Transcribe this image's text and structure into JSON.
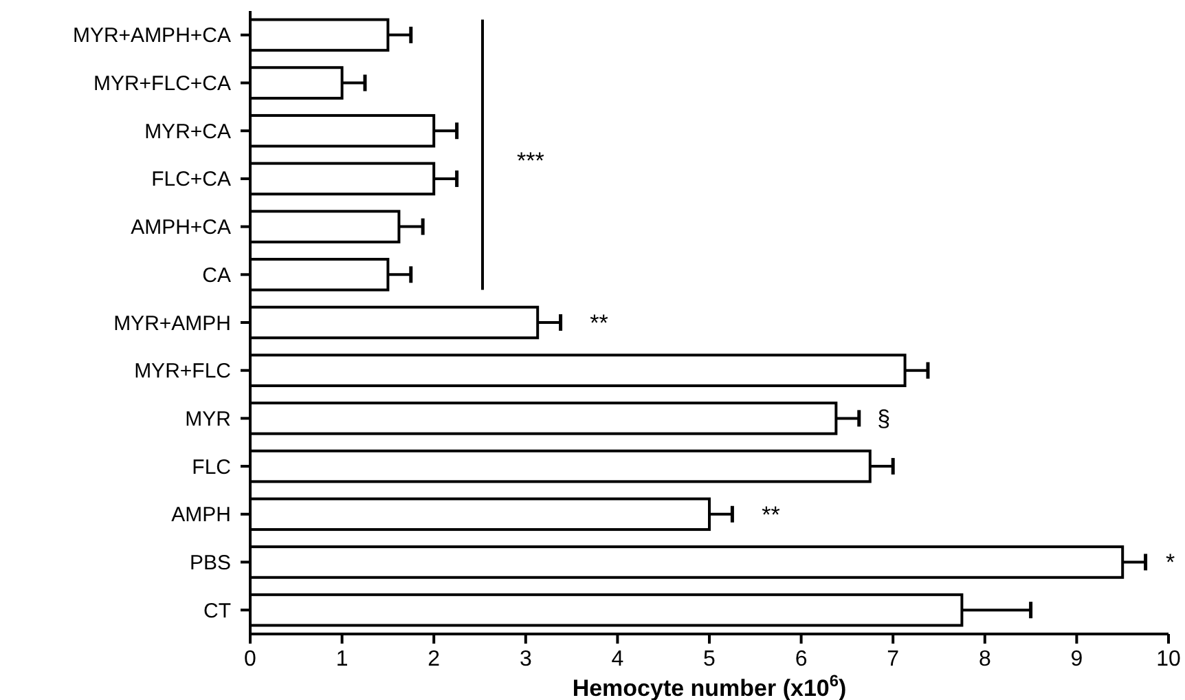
{
  "chart_data": {
    "type": "bar",
    "orientation": "horizontal",
    "xlabel": "Hemocyte number (x10$^{6}$)",
    "categories": [
      "MYR+AMPH+CA",
      "MYR+FLC+CA",
      "MYR+CA",
      "FLC+CA",
      "AMPH+CA",
      "CA",
      "MYR+AMPH",
      "MYR+FLC",
      "MYR",
      "FLC",
      "AMPH",
      "PBS",
      "CT"
    ],
    "values": [
      1.5,
      1.0,
      2.0,
      2.0,
      1.62,
      1.5,
      3.13,
      7.13,
      6.38,
      6.75,
      5.0,
      9.5,
      7.75
    ],
    "errors": [
      [
        1.5,
        1.75
      ],
      [
        1.0,
        1.25
      ],
      [
        2.0,
        2.25
      ],
      [
        2.0,
        2.25
      ],
      [
        1.62,
        1.88
      ],
      [
        1.5,
        1.75
      ],
      [
        3.13,
        3.38
      ],
      [
        7.13,
        7.38
      ],
      [
        6.38,
        6.63
      ],
      [
        6.75,
        7.0
      ],
      [
        5.0,
        5.25
      ],
      [
        9.5,
        9.75
      ],
      [
        7.75,
        8.5
      ]
    ],
    "color": "#ffffff",
    "xlim": [
      0,
      10
    ],
    "xticks": [
      0,
      1,
      2,
      3,
      4,
      5,
      6,
      7,
      8,
      9,
      10
    ],
    "annotations": [
      "***",
      {
        "text": "**",
        "x": 3.38,
        "y": "MYR+AMPH"
      },
      {
        "text": "§",
        "x": 6.63,
        "y": "MYR"
      },
      {
        "text": "**",
        "x": 5.25,
        "y": "AMPH"
      },
      {
        "text": "*",
        "x": 9.75,
        "y": "PBS"
      }
    ],
    "grid": false
  }
}
